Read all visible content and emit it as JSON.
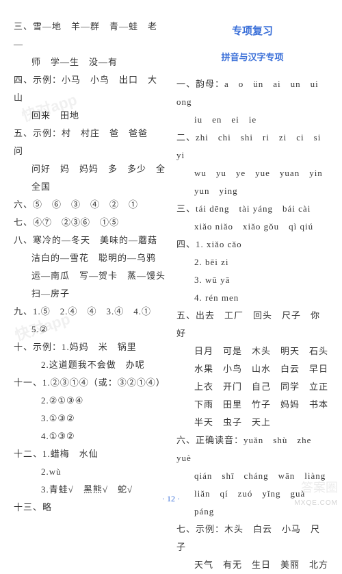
{
  "left": {
    "three": [
      "三、雪—地　羊—群　青—蛙　老—",
      "师　学—生　没—有"
    ],
    "four": [
      "四、示例：小马　小鸟　出口　大山",
      "回来　田地"
    ],
    "five": [
      "五、示例：村　村庄　爸　爸爸　问",
      "问好　妈　妈妈　多　多少　全",
      "全国"
    ],
    "six": "六、⑤　⑥　③　④　②　①",
    "seven": "七、④⑦　②③⑥　①⑤",
    "eight": [
      "八、寒冷的—冬天　美味的—蘑菇",
      "洁白的—雪花　聪明的—乌鸦",
      "运—南瓜　写—贺卡　蒸—馒头",
      "扫—房子"
    ],
    "nine": [
      "九、1.⑤　2.④　④　3.④　4.①",
      "5.②"
    ],
    "ten": [
      "十、示例：1.妈妈　米　锅里",
      "2.这道题我不会做　办呢"
    ],
    "eleven": [
      "十一、1.②③①④（或：③②①④）",
      "2.②①③④",
      "3.①③②",
      "4.①③②"
    ],
    "twelve": [
      "十二、1.蜡梅　水仙",
      "2.wù",
      "3.青蛙√　黑熊√　蛇√"
    ],
    "thirteen": "十三、略"
  },
  "right": {
    "sectionTitle": "专项复习",
    "subTitle": "拼音与汉字专项",
    "one": [
      "一、韵母：a　o　ün　ai　un　ui　ong",
      "iu　en　ei　ie"
    ],
    "two": [
      "二、zhi　chi　shi　ri　zi　ci　si　yi",
      "wu　yu　ye　yue　yuan　yin",
      "yun　ying"
    ],
    "three": [
      "三、tái dēng　tài yáng　bái cài",
      "xiǎo niǎo　xiǎo gǒu　qì qiú"
    ],
    "four": [
      "四、1. xiǎo cǎo",
      "2. bēi zi",
      "3. wū yā",
      "4. rén men"
    ],
    "five": [
      "五、出去　工厂　回头　尺子　你好",
      "日月　可是　木头　明天　石头",
      "水果　小鸟　山水　白云　早日",
      "上衣　开门　自己　同学　立正",
      "下雨　田里　竹子　妈妈　书本",
      "半天　虫子　天上"
    ],
    "six": [
      "六、正确读音：yuǎn　shù　zhe　yuè",
      "qián　shī　cháng　wān　liàng",
      "liǎn　qí　zuó　yǐng　guà",
      "páng"
    ],
    "seven": [
      "七、示例：木头　白云　小马　尺子",
      "天气　有无　生日　美丽　北方"
    ]
  },
  "pagenum": "· 12 ·",
  "watermarks": {
    "app": "快对app",
    "brand": "答案圈",
    "site": "MXQE.COM"
  }
}
